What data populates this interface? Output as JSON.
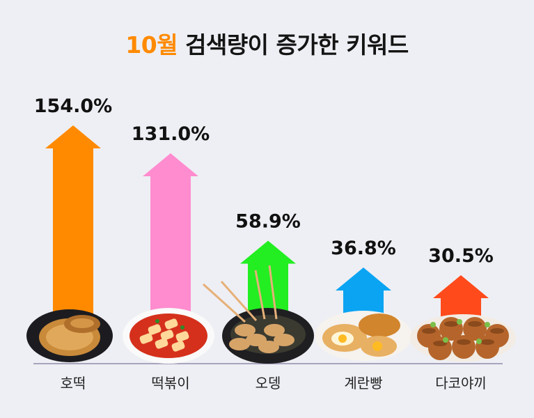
{
  "title": {
    "highlight": "10월",
    "rest": " 검색량이 증가한 키워드"
  },
  "colors": {
    "title_highlight": "#ff8a00",
    "background": "#eeeff4",
    "baseline": "#a7a4bd"
  },
  "chart_data": {
    "type": "bar",
    "title": "10월 검색량이 증가한 키워드",
    "categories": [
      "호떡",
      "떡볶이",
      "오뎅",
      "계란빵",
      "다코야끼"
    ],
    "values": [
      154.0,
      131.0,
      58.9,
      36.8,
      30.5
    ],
    "value_labels": [
      "154.0%",
      "131.0%",
      "58.9%",
      "36.8%",
      "30.5%"
    ],
    "unit": "%",
    "colors": [
      "#ff8a00",
      "#ff8ccf",
      "#22ee22",
      "#0aa4f2",
      "#ff4a1c"
    ],
    "food_icons": [
      "hotteok-plate",
      "tteokbokki-bowl",
      "odeng-skewer-bowl",
      "gyeranppang-plate",
      "takoyaki-tray"
    ],
    "xlabel": "",
    "ylabel": "",
    "grid": false,
    "legend": "none"
  }
}
